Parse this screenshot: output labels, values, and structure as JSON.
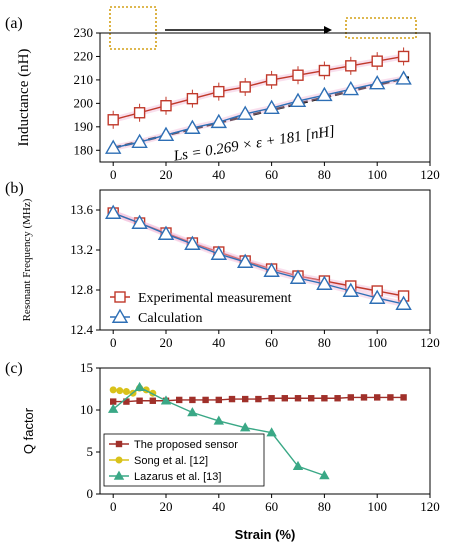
{
  "figure_parts": {
    "a": {
      "label": "(a)",
      "equation": "Ls = 0.269 × ε + 181 [nH]"
    },
    "b": {
      "label": "(b)"
    },
    "c": {
      "label": "(c)"
    }
  },
  "chart_data": [
    {
      "id": "a",
      "type": "line",
      "xlabel": "",
      "ylabel": "Inductance (nH)",
      "xlim": [
        -5,
        120
      ],
      "ylim": [
        175,
        230
      ],
      "xticks": [
        0,
        20,
        40,
        60,
        80,
        100,
        120
      ],
      "yticks": [
        180,
        190,
        200,
        210,
        220,
        230
      ],
      "x": [
        0,
        10,
        20,
        30,
        40,
        50,
        60,
        70,
        80,
        90,
        100,
        110
      ],
      "series": [
        {
          "name": "",
          "color": "#c0392b",
          "marker": "square",
          "values": [
            193,
            196,
            199,
            202,
            205,
            207,
            210,
            212,
            214,
            216,
            218,
            220
          ]
        },
        {
          "name": "",
          "color": "#2e6fb5",
          "marker": "triangle",
          "values": [
            181,
            183.5,
            186.5,
            189.5,
            192,
            195.5,
            198,
            201,
            203.5,
            206,
            208.5,
            210.5
          ]
        }
      ],
      "fit": {
        "color": "#000000",
        "style": "dashed",
        "slope": 0.269,
        "intercept": 181
      }
    },
    {
      "id": "b",
      "type": "line",
      "xlabel": "",
      "ylabel": "Resonant Frequency (MHz)",
      "xlim": [
        -5,
        120
      ],
      "ylim": [
        12.4,
        13.8
      ],
      "xticks": [
        0,
        20,
        40,
        60,
        80,
        100,
        120
      ],
      "yticks": [
        12.4,
        12.8,
        13.2,
        13.6
      ],
      "x": [
        0,
        10,
        20,
        30,
        40,
        50,
        60,
        70,
        80,
        90,
        100,
        110
      ],
      "series": [
        {
          "name": "Experimental measurement",
          "color": "#c0392b",
          "marker": "square",
          "values": [
            13.57,
            13.47,
            13.37,
            13.27,
            13.18,
            13.09,
            13.01,
            12.94,
            12.89,
            12.84,
            12.79,
            12.74
          ]
        },
        {
          "name": "Calculation",
          "color": "#2e6fb5",
          "marker": "triangle",
          "values": [
            13.57,
            13.47,
            13.36,
            13.26,
            13.16,
            13.08,
            12.99,
            12.92,
            12.86,
            12.79,
            12.72,
            12.66
          ]
        }
      ],
      "legend_position": "bottom-left"
    },
    {
      "id": "c",
      "type": "line",
      "xlabel": "Strain (%)",
      "ylabel": "Q factor",
      "xlim": [
        -5,
        120
      ],
      "ylim": [
        0,
        15
      ],
      "xticks": [
        0,
        20,
        40,
        60,
        80,
        100,
        120
      ],
      "yticks": [
        0,
        5,
        10,
        15
      ],
      "series": [
        {
          "name": "The proposed sensor",
          "color": "#a0302a",
          "marker": "square",
          "x": [
            0,
            5,
            10,
            15,
            20,
            25,
            30,
            35,
            40,
            45,
            50,
            55,
            60,
            65,
            70,
            75,
            80,
            85,
            90,
            95,
            100,
            105,
            110
          ],
          "values": [
            11.0,
            11.0,
            11.1,
            11.1,
            11.1,
            11.2,
            11.2,
            11.2,
            11.2,
            11.3,
            11.3,
            11.3,
            11.4,
            11.4,
            11.4,
            11.4,
            11.4,
            11.4,
            11.5,
            11.5,
            11.5,
            11.5,
            11.5
          ]
        },
        {
          "name": "Song et al. [12]",
          "color": "#d9c21a",
          "marker": "circle",
          "x": [
            0,
            2.5,
            5,
            7.5,
            10,
            12.5,
            15
          ],
          "values": [
            12.4,
            12.3,
            12.2,
            12.0,
            12.6,
            12.4,
            12.0
          ]
        },
        {
          "name": "Lazarus et al. [13]",
          "color": "#3aa886",
          "marker": "triangle",
          "x": [
            0,
            10,
            20,
            30,
            40,
            50,
            60,
            70,
            80
          ],
          "values": [
            10.1,
            12.7,
            11.1,
            9.7,
            8.7,
            7.9,
            7.3,
            3.3,
            2.2
          ]
        }
      ],
      "legend_position": "bottom-left"
    }
  ]
}
